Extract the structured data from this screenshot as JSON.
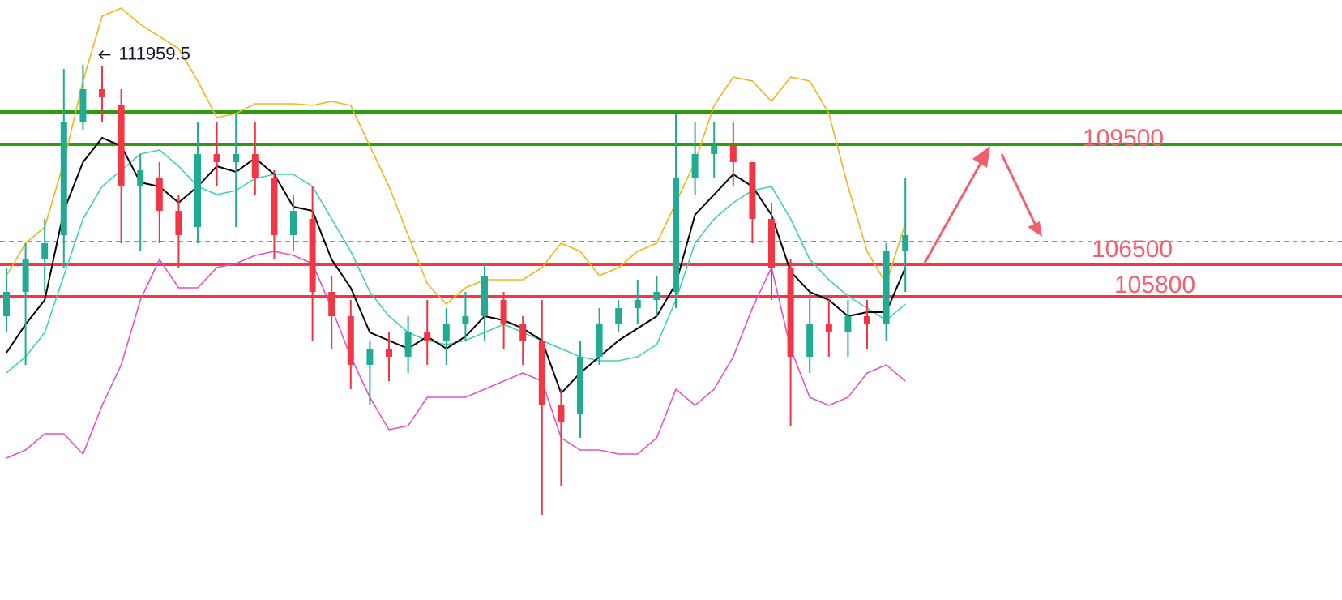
{
  "chart_data": {
    "type": "candlestick",
    "ylim": [
      95450,
      113950
    ],
    "up_color": "#22ab94",
    "down_color": "#f23645",
    "open": [
      104200,
      104950,
      105950,
      106700,
      110200,
      111200,
      110700,
      108200,
      108450,
      107450,
      106950,
      109200,
      108950,
      109200,
      108450,
      106700,
      107200,
      104950,
      104200,
      102700,
      103200,
      102950,
      103700,
      103450,
      103950,
      104200,
      104700,
      103950,
      103450,
      101450,
      101200,
      102950,
      103950,
      104450,
      104700,
      104950,
      108450,
      109200,
      109450,
      108950,
      107200,
      105700,
      102950,
      103950,
      103700,
      104200,
      103950,
      106200
    ],
    "high": [
      105700,
      106450,
      107200,
      111825,
      111959.5,
      111900,
      111200,
      109200,
      108950,
      107950,
      110200,
      110200,
      110450,
      110200,
      108700,
      107950,
      108200,
      105450,
      104700,
      103450,
      103700,
      104200,
      104700,
      104450,
      104950,
      105825,
      104950,
      104200,
      104700,
      101950,
      103450,
      104450,
      104700,
      105325,
      105450,
      110450,
      110200,
      110200,
      110200,
      108950,
      107700,
      105950,
      104950,
      104700,
      104700,
      104700,
      106450,
      108450
    ],
    "low": [
      103700,
      102700,
      104950,
      105700,
      109950,
      110200,
      106450,
      106200,
      106450,
      105700,
      106450,
      108200,
      106950,
      107950,
      105950,
      106200,
      103450,
      103200,
      101950,
      101450,
      102200,
      102450,
      102700,
      102700,
      103450,
      103450,
      103200,
      102700,
      98075,
      98950,
      100450,
      102700,
      103700,
      103950,
      104200,
      104450,
      107950,
      108450,
      108200,
      106450,
      104700,
      100825,
      102450,
      102950,
      102950,
      103200,
      103450,
      104950
    ],
    "close": [
      104950,
      105950,
      106450,
      110200,
      111200,
      110950,
      108200,
      108700,
      107450,
      106700,
      109200,
      108950,
      109200,
      108450,
      106700,
      107450,
      104950,
      104200,
      102700,
      103200,
      102950,
      103700,
      103450,
      103950,
      104200,
      105450,
      103950,
      103450,
      101450,
      100950,
      102950,
      103950,
      104450,
      104700,
      104950,
      108450,
      109200,
      109450,
      108950,
      107200,
      105700,
      102950,
      103950,
      103700,
      104200,
      103950,
      106200,
      106700
    ],
    "lines": [
      {
        "color": "#f0b41c",
        "values": [
          105450,
          106450,
          106950,
          108950,
          111450,
          113450,
          113700,
          113200,
          112825,
          112450,
          111450,
          110325,
          110450,
          110750,
          110750,
          110750,
          110700,
          110825,
          110700,
          109450,
          108200,
          106700,
          105200,
          104575,
          105075,
          105325,
          105325,
          105325,
          105700,
          106450,
          106200,
          105450,
          105700,
          106200,
          106450,
          107700,
          108950,
          110700,
          111575,
          111450,
          110825,
          111575,
          111450,
          110450,
          108200,
          106200,
          105200,
          107075
        ]
      },
      {
        "color": "#e052c8",
        "values": [
          99825,
          100075,
          100575,
          100575,
          99950,
          101450,
          102700,
          104700,
          105950,
          105075,
          105075,
          105700,
          105825,
          106075,
          106200,
          106075,
          105825,
          104450,
          102950,
          101700,
          100700,
          100825,
          101700,
          101700,
          101700,
          101950,
          102200,
          102450,
          102200,
          100450,
          100075,
          100075,
          99950,
          99950,
          100450,
          101950,
          101450,
          101950,
          102950,
          104450,
          105700,
          103200,
          101700,
          101450,
          101700,
          102450,
          102700,
          102200
        ]
      },
      {
        "color": "#3fd1b0",
        "values": [
          102450,
          102950,
          103700,
          105450,
          107200,
          108200,
          108700,
          109200,
          109325,
          108825,
          108200,
          107950,
          108075,
          108450,
          108575,
          108575,
          108200,
          107200,
          106200,
          104950,
          104200,
          103700,
          103450,
          103325,
          103450,
          103700,
          103950,
          103700,
          103450,
          103200,
          102950,
          102825,
          102825,
          102950,
          103325,
          104700,
          106450,
          107200,
          107700,
          108075,
          108200,
          107200,
          105950,
          105325,
          104825,
          104450,
          104075,
          104575
        ]
      },
      {
        "color": "#000000",
        "values": [
          103075,
          103950,
          104700,
          107450,
          108950,
          109700,
          109450,
          108325,
          108200,
          107700,
          108200,
          108825,
          108650,
          109075,
          108575,
          107575,
          107450,
          105950,
          105075,
          103700,
          103450,
          103200,
          103575,
          103200,
          103575,
          104200,
          104075,
          103825,
          103450,
          101825,
          102450,
          102950,
          103450,
          103825,
          104200,
          105200,
          107325,
          107950,
          108575,
          108200,
          107325,
          105575,
          104950,
          104700,
          104200,
          104325,
          104325,
          105700
        ]
      }
    ],
    "levels": [
      110500,
      109500,
      106500,
      105800,
      104800
    ],
    "level_colors": [
      "#2e9a0e",
      "#2e9a0e",
      "#f23645",
      "#f23645",
      "#f23645"
    ],
    "level_dashed": [
      false,
      false,
      true,
      false,
      false
    ]
  }
}
